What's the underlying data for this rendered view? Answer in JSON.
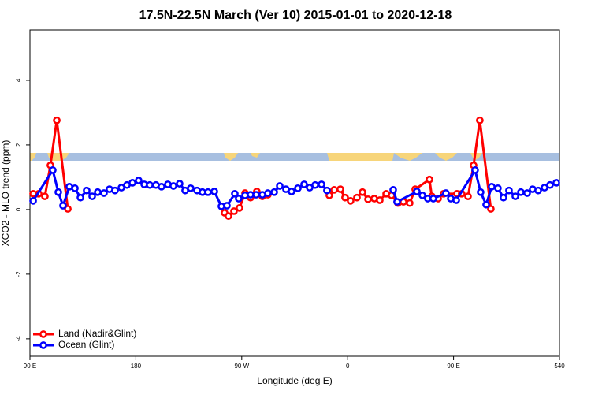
{
  "chart_data": {
    "type": "line",
    "title": "17.5N-22.5N March (Ver 10)   2015-01-01 to 2020-12-18",
    "xlabel": "Longitude (deg E)",
    "ylabel": "XCO2 - MLO trend (ppm)",
    "xlim": [
      90,
      540
    ],
    "xticks": [
      {
        "value": 90,
        "label": "90 E"
      },
      180,
      {
        "value": 270,
        "label": "90 W"
      },
      {
        "value": 360,
        "label": "0"
      },
      {
        "value": 450,
        "label": "90 E"
      },
      540
    ],
    "ylim": [
      -4.54,
      5.56
    ],
    "yticks": [
      -4,
      -2,
      0,
      2,
      4
    ],
    "legend": "bottom-left",
    "series": [
      {
        "name": "Land (Nadir&Glint)",
        "color": "#ff0000",
        "x": [
          92.7,
          97.4,
          102.7,
          107.4,
          112.8,
          122.2,
          200,
          255.4,
          258.7,
          263.4,
          268.1,
          272.8,
          277.5,
          282.8,
          287.5,
          292.2,
          300,
          344.4,
          348.5,
          353.8,
          357.8,
          362.5,
          367.9,
          372.6,
          377.3,
          382.6,
          387.3,
          392.7,
          397.3,
          402.7,
          407.4,
          412.7,
          417.4,
          429.5,
          431.5,
          436.9,
          441.5,
          452.9,
          456.9,
          462.3,
          467,
          472.3,
          481.7
        ],
        "values": [
          0.49,
          0.49,
          0.41,
          1.37,
          2.76,
          0.02,
          null,
          -0.1,
          -0.2,
          -0.05,
          0.05,
          0.51,
          0.37,
          0.56,
          0.41,
          0.46,
          null,
          0.44,
          0.61,
          0.63,
          0.37,
          0.27,
          0.37,
          0.54,
          0.32,
          0.34,
          0.29,
          0.49,
          0.44,
          0.2,
          0.24,
          0.2,
          0.63,
          0.93,
          0.41,
          0.34,
          0.49,
          0.49,
          0.49,
          0.41,
          1.37,
          2.76,
          0.02
        ]
      },
      {
        "name": "Ocean (Glint)",
        "color": "#0000ff",
        "x": [
          92.7,
          109.4,
          114.1,
          118.1,
          123.5,
          128.2,
          132.9,
          138.2,
          142.9,
          147.6,
          152.9,
          157.6,
          162.3,
          167.7,
          172.4,
          177.1,
          182.4,
          187.1,
          191.8,
          197.1,
          201.8,
          207.2,
          211.9,
          217.2,
          221.9,
          226.6,
          232,
          236.6,
          241.3,
          246.7,
          252.7,
          257.4,
          264.1,
          267.4,
          272.8,
          277.5,
          282.2,
          287.5,
          292.2,
          297.6,
          302.3,
          307.6,
          312.3,
          317.7,
          323,
          327.7,
          332.4,
          337.8,
          342.4,
          370,
          398.7,
          402,
          418.8,
          423.5,
          428.1,
          432.8,
          443.5,
          447.6,
          452.3,
          468.3,
          473,
          477.7,
          482.4,
          487.7,
          492.4,
          497.1,
          502.5,
          507.2,
          512.5,
          517.2,
          521.9,
          527.3,
          531.9,
          537.3
        ],
        "values": [
          0.27,
          1.22,
          0.54,
          0.12,
          0.71,
          0.66,
          0.37,
          0.59,
          0.41,
          0.54,
          0.51,
          0.63,
          0.59,
          0.68,
          0.76,
          0.83,
          0.9,
          0.78,
          0.76,
          0.76,
          0.71,
          0.78,
          0.73,
          0.8,
          0.59,
          0.66,
          0.59,
          0.54,
          0.54,
          0.56,
          0.1,
          0.12,
          0.49,
          0.34,
          0.44,
          0.46,
          0.46,
          0.46,
          0.51,
          0.54,
          0.73,
          0.63,
          0.56,
          0.66,
          0.78,
          0.68,
          0.76,
          0.78,
          0.59,
          null,
          0.61,
          0.24,
          0.56,
          0.44,
          0.34,
          0.34,
          0.51,
          0.34,
          0.29,
          1.22,
          0.54,
          0.15,
          0.71,
          0.66,
          0.37,
          0.59,
          0.41,
          0.54,
          0.51,
          0.63,
          0.59,
          0.68,
          0.76,
          0.83
        ]
      }
    ]
  }
}
